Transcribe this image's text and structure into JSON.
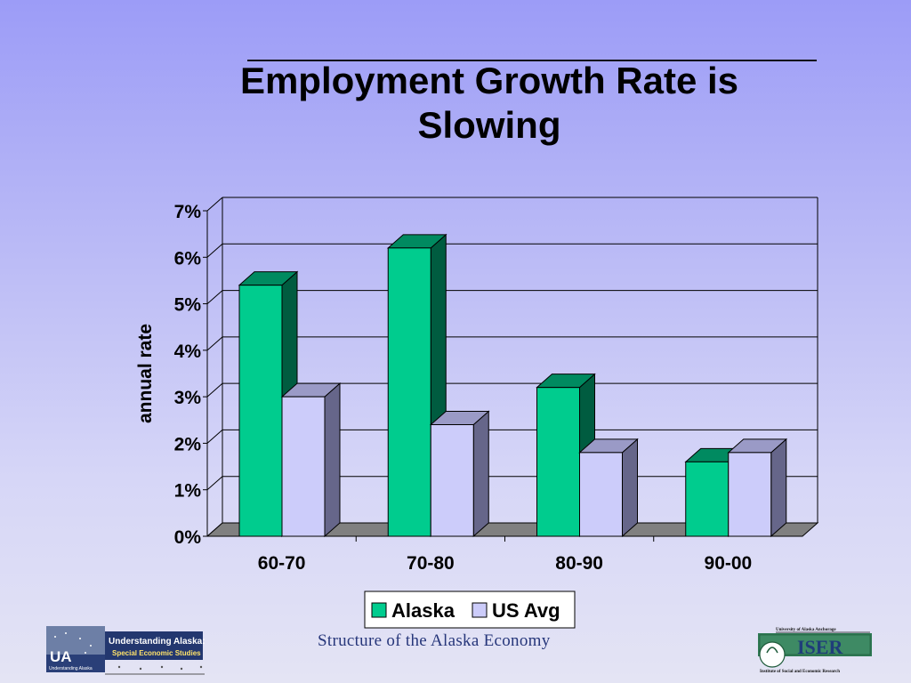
{
  "slide": {
    "title": "Employment Growth Rate is Slowing",
    "footer": "Structure of the Alaska Economy"
  },
  "logos": {
    "left": {
      "line1": "Understanding Alaska:",
      "line2": "Special Economic Studies",
      "badge": "UA",
      "badge_sub": "Understanding Alaska"
    },
    "right": {
      "top": "University of Alaska Anchorage",
      "main": "ISER",
      "bottom": "Institute of Social and Economic Research"
    }
  },
  "chart_data": {
    "type": "bar",
    "title": "",
    "xlabel": "",
    "ylabel": "annual rate",
    "categories": [
      "60-70",
      "70-80",
      "80-90",
      "90-00"
    ],
    "series": [
      {
        "name": "Alaska",
        "values": [
          5.4,
          6.2,
          3.2,
          1.6
        ],
        "color": "#00cc8e",
        "side": "#005c40",
        "top": "#008a60"
      },
      {
        "name": "US Avg",
        "values": [
          3.0,
          2.4,
          1.8,
          1.8
        ],
        "color": "#ccccfa",
        "side": "#66668a",
        "top": "#9a9ac6"
      }
    ],
    "ylim": [
      0,
      7
    ],
    "yticks": [
      "0%",
      "1%",
      "2%",
      "3%",
      "4%",
      "5%",
      "6%",
      "7%"
    ],
    "grid": true,
    "legend": "bottom",
    "colors": {
      "floor": "#808080",
      "gridline": "#000000",
      "wall": "transparent"
    }
  }
}
